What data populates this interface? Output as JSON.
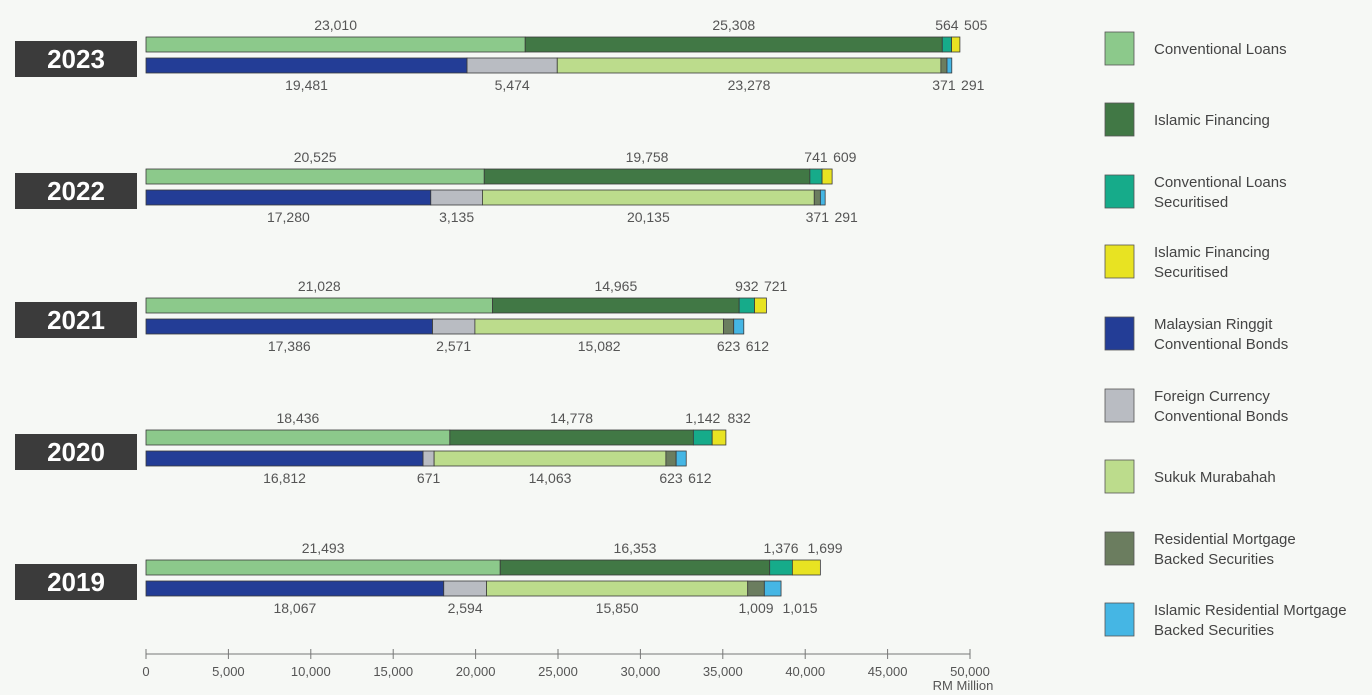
{
  "chart_data": {
    "type": "bar",
    "orientation": "horizontal-stacked",
    "unit_label": "RM Million",
    "xlim": [
      0,
      50000
    ],
    "x_ticks": [
      "0",
      "5,000",
      "10,000",
      "15,000",
      "20,000",
      "25,000",
      "30,000",
      "35,000",
      "40,000",
      "45,000",
      "50,000"
    ],
    "x_tick_values": [
      0,
      5000,
      10000,
      15000,
      20000,
      25000,
      30000,
      35000,
      40000,
      45000,
      50000
    ],
    "grid": false,
    "legend_position": "right",
    "series": [
      {
        "key": "conv_loans",
        "name_lines": [
          "Conventional Loans"
        ],
        "color": "#8cc98b"
      },
      {
        "key": "islamic_fin",
        "name_lines": [
          "Islamic Financing"
        ],
        "color": "#417845"
      },
      {
        "key": "conv_loans_sec",
        "name_lines": [
          "Conventional Loans",
          "Securitised"
        ],
        "color": "#16ab8a"
      },
      {
        "key": "islamic_fin_sec",
        "name_lines": [
          "Islamic Financing",
          "Securitised"
        ],
        "color": "#e8e322"
      },
      {
        "key": "myr_bonds",
        "name_lines": [
          "Malaysian Ringgit",
          "Conventional Bonds"
        ],
        "color": "#233d96"
      },
      {
        "key": "fx_bonds",
        "name_lines": [
          "Foreign Currency",
          "Conventional Bonds"
        ],
        "color": "#b9bcc2"
      },
      {
        "key": "sukuk",
        "name_lines": [
          "Sukuk Murabahah"
        ],
        "color": "#bcdc8c"
      },
      {
        "key": "rmbs",
        "name_lines": [
          "Residential Mortgage",
          "Backed Securities"
        ],
        "color": "#6b7d5f"
      },
      {
        "key": "irmbs",
        "name_lines": [
          "Islamic Residential Mortgage",
          "Backed Securities"
        ],
        "color": "#45b6e4"
      }
    ],
    "years": [
      {
        "year": "2023",
        "top": [
          {
            "series": "conv_loans",
            "value": 23010,
            "label": "23,010"
          },
          {
            "series": "islamic_fin",
            "value": 25308,
            "label": "25,308"
          },
          {
            "series": "conv_loans_sec",
            "value": 564,
            "label": "564"
          },
          {
            "series": "islamic_fin_sec",
            "value": 505,
            "label": "505"
          }
        ],
        "bottom": [
          {
            "series": "myr_bonds",
            "value": 19481,
            "label": "19,481"
          },
          {
            "series": "fx_bonds",
            "value": 5474,
            "label": "5,474"
          },
          {
            "series": "sukuk",
            "value": 23278,
            "label": "23,278"
          },
          {
            "series": "rmbs",
            "value": 371,
            "label": "371"
          },
          {
            "series": "irmbs",
            "value": 291,
            "label": "291"
          }
        ]
      },
      {
        "year": "2022",
        "top": [
          {
            "series": "conv_loans",
            "value": 20525,
            "label": "20,525"
          },
          {
            "series": "islamic_fin",
            "value": 19758,
            "label": "19,758"
          },
          {
            "series": "conv_loans_sec",
            "value": 741,
            "label": "741"
          },
          {
            "series": "islamic_fin_sec",
            "value": 609,
            "label": "609"
          }
        ],
        "bottom": [
          {
            "series": "myr_bonds",
            "value": 17280,
            "label": "17,280"
          },
          {
            "series": "fx_bonds",
            "value": 3135,
            "label": "3,135"
          },
          {
            "series": "sukuk",
            "value": 20135,
            "label": "20,135"
          },
          {
            "series": "rmbs",
            "value": 371,
            "label": "371"
          },
          {
            "series": "irmbs",
            "value": 291,
            "label": "291"
          }
        ]
      },
      {
        "year": "2021",
        "top": [
          {
            "series": "conv_loans",
            "value": 21028,
            "label": "21,028"
          },
          {
            "series": "islamic_fin",
            "value": 14965,
            "label": "14,965"
          },
          {
            "series": "conv_loans_sec",
            "value": 932,
            "label": "932"
          },
          {
            "series": "islamic_fin_sec",
            "value": 721,
            "label": "721"
          }
        ],
        "bottom": [
          {
            "series": "myr_bonds",
            "value": 17386,
            "label": "17,386"
          },
          {
            "series": "fx_bonds",
            "value": 2571,
            "label": "2,571"
          },
          {
            "series": "sukuk",
            "value": 15082,
            "label": "15,082"
          },
          {
            "series": "rmbs",
            "value": 623,
            "label": "623"
          },
          {
            "series": "irmbs",
            "value": 612,
            "label": "612"
          }
        ]
      },
      {
        "year": "2020",
        "top": [
          {
            "series": "conv_loans",
            "value": 18436,
            "label": "18,436"
          },
          {
            "series": "islamic_fin",
            "value": 14778,
            "label": "14,778"
          },
          {
            "series": "conv_loans_sec",
            "value": 1142,
            "label": "1,142"
          },
          {
            "series": "islamic_fin_sec",
            "value": 832,
            "label": "832"
          }
        ],
        "bottom": [
          {
            "series": "myr_bonds",
            "value": 16812,
            "label": "16,812"
          },
          {
            "series": "fx_bonds",
            "value": 671,
            "label": "671"
          },
          {
            "series": "sukuk",
            "value": 14063,
            "label": "14,063"
          },
          {
            "series": "rmbs",
            "value": 623,
            "label": "623"
          },
          {
            "series": "irmbs",
            "value": 612,
            "label": "612"
          }
        ]
      },
      {
        "year": "2019",
        "top": [
          {
            "series": "conv_loans",
            "value": 21493,
            "label": "21,493"
          },
          {
            "series": "islamic_fin",
            "value": 16353,
            "label": "16,353"
          },
          {
            "series": "conv_loans_sec",
            "value": 1376,
            "label": "1,376"
          },
          {
            "series": "islamic_fin_sec",
            "value": 1699,
            "label": "1,699"
          }
        ],
        "bottom": [
          {
            "series": "myr_bonds",
            "value": 18067,
            "label": "18,067"
          },
          {
            "series": "fx_bonds",
            "value": 2594,
            "label": "2,594"
          },
          {
            "series": "sukuk",
            "value": 15850,
            "label": "15,850"
          },
          {
            "series": "rmbs",
            "value": 1009,
            "label": "1,009"
          },
          {
            "series": "irmbs",
            "value": 1015,
            "label": "1,015"
          }
        ]
      }
    ]
  }
}
